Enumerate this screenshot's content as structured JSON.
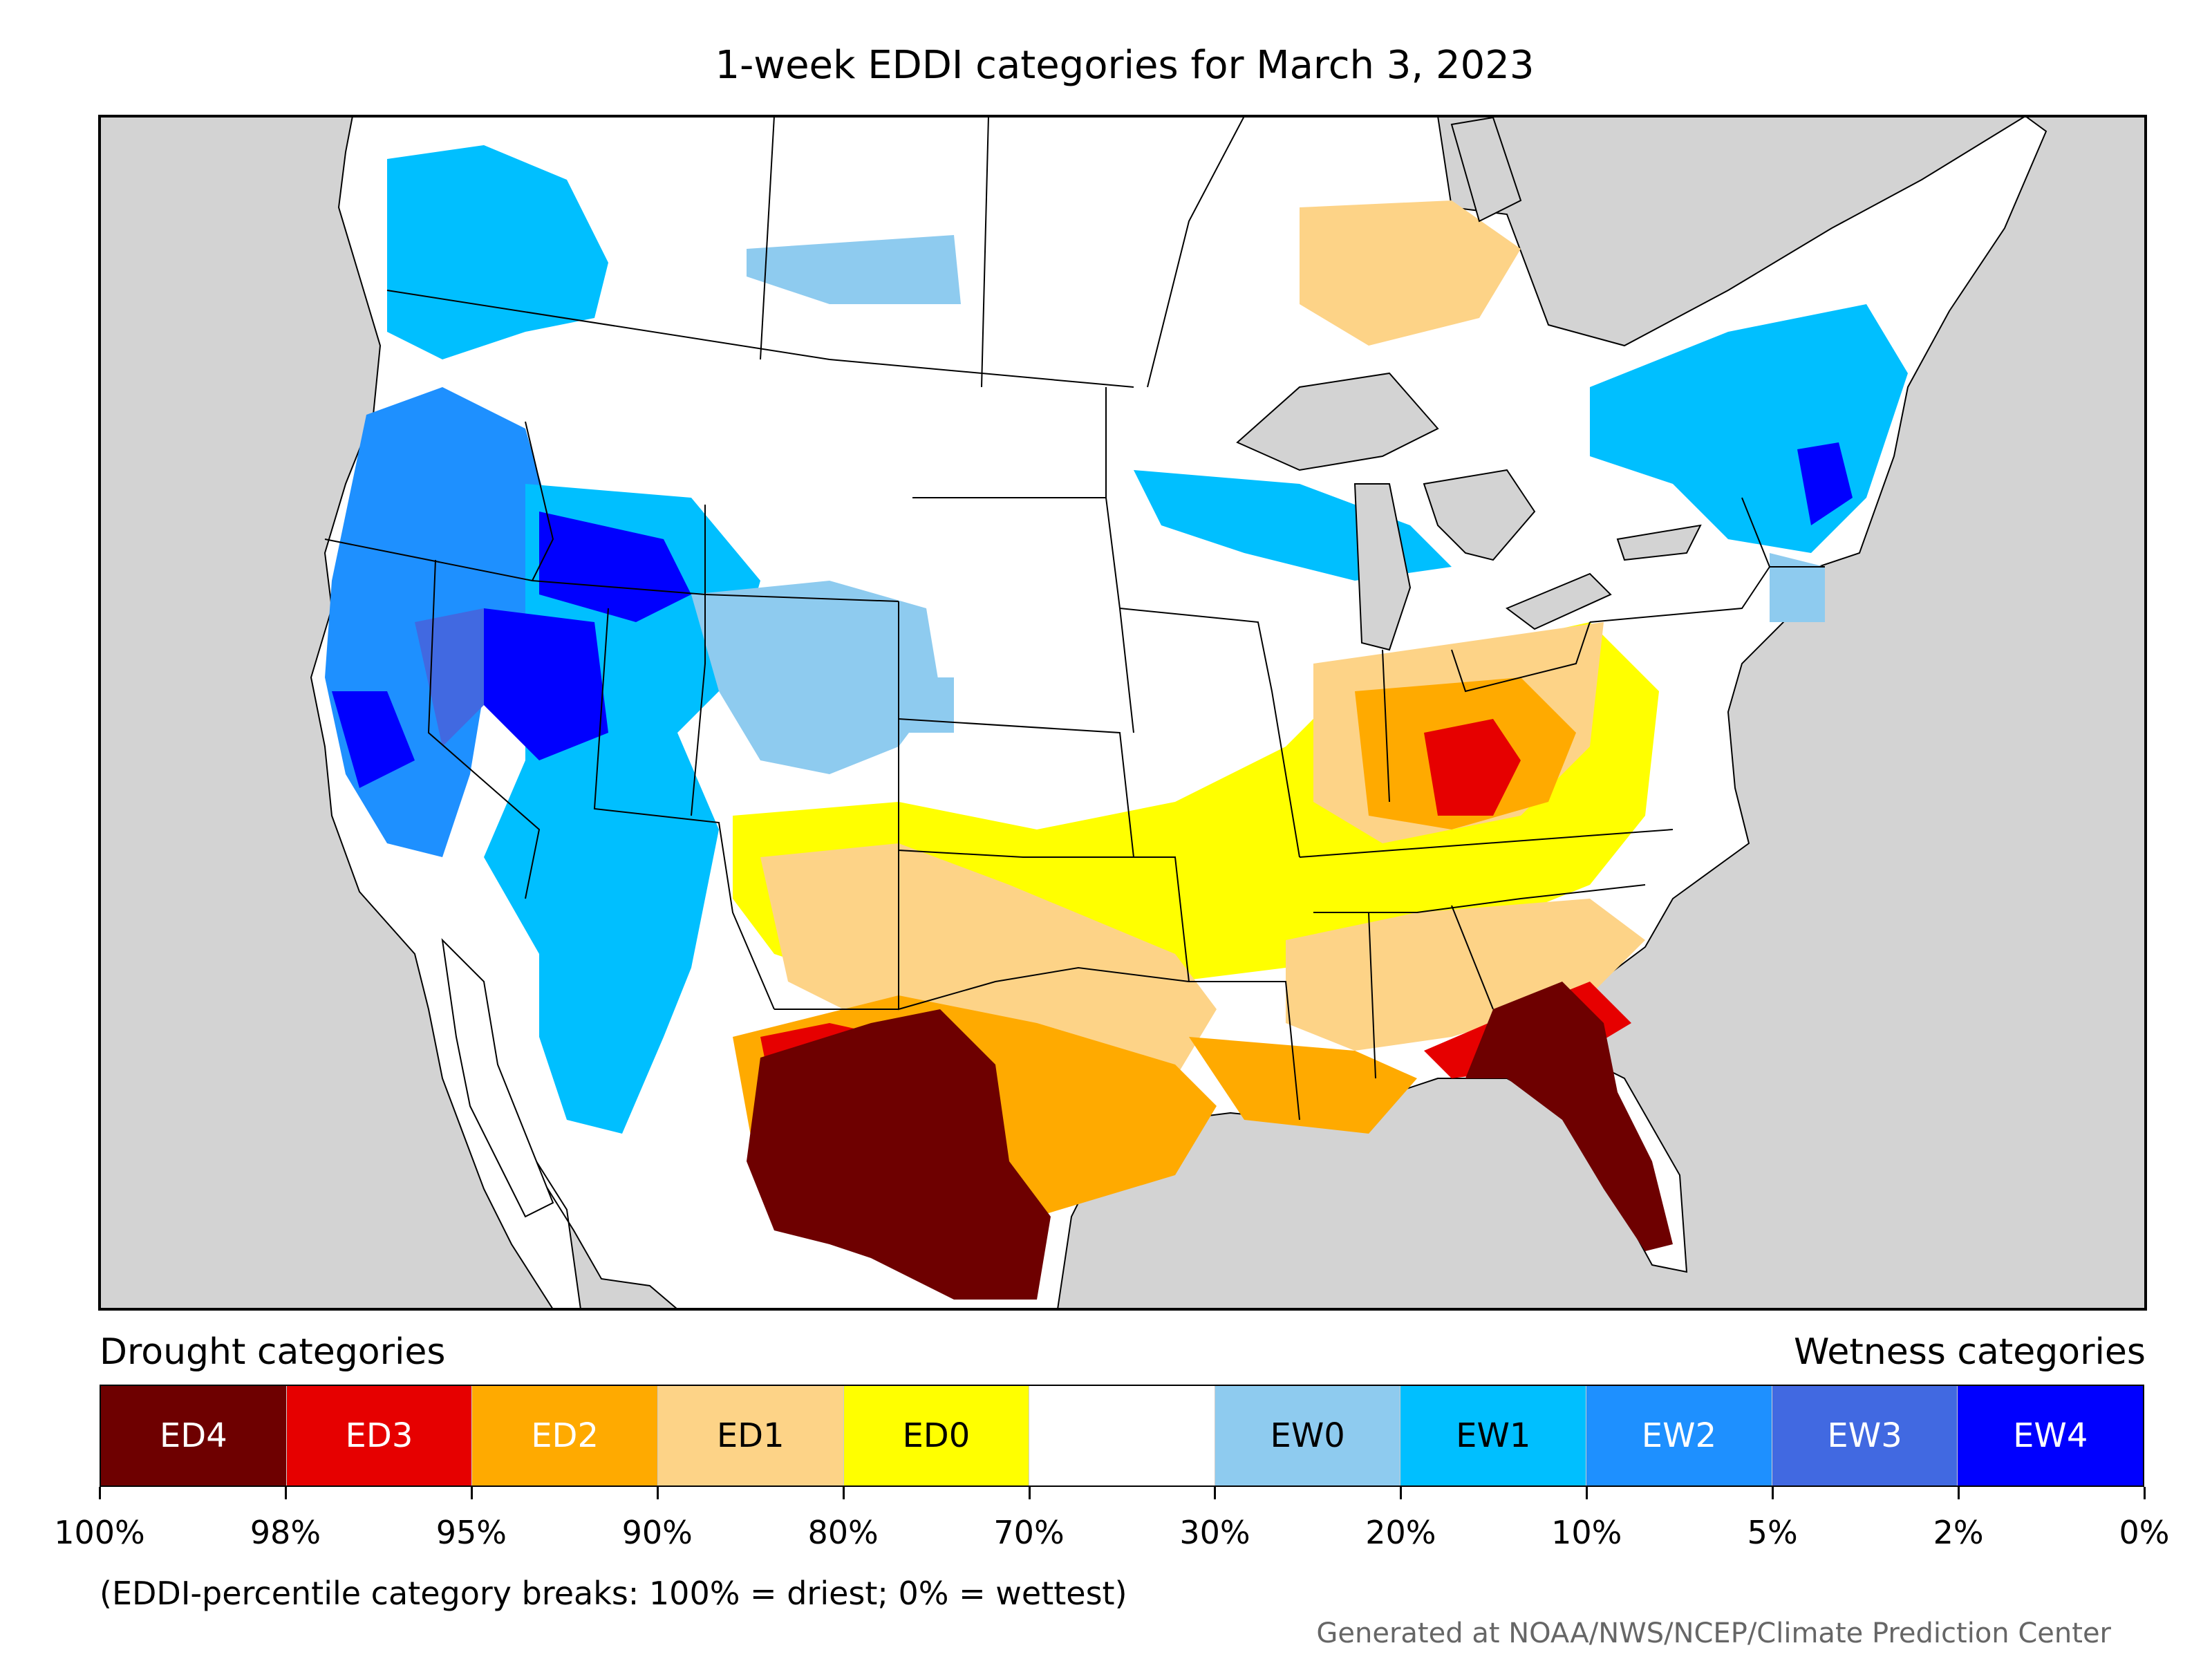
{
  "map": {
    "title": "1-week EDDI categories for March 3, 2023",
    "region": "Contiguous United States with portions of Canada and Mexico",
    "colors": {
      "ocean": "#d3d3d3",
      "land": "#ffffff",
      "border": "#000000"
    },
    "regions_shown": [
      {
        "category": "EW2",
        "area": "Pacific Northwest and northern California"
      },
      {
        "category": "EW4",
        "area": "Nevada, Utah, southern Idaho"
      },
      {
        "category": "EW1",
        "area": "Great Lakes, New England and Quebec"
      },
      {
        "category": "ED4",
        "area": "South and West Texas, northern Mexico"
      },
      {
        "category": "ED4",
        "area": "Florida and southern Georgia"
      },
      {
        "category": "ED3",
        "area": "Kentucky, southern Ohio"
      },
      {
        "category": "ED2",
        "area": "Ohio Valley, Louisiana and Gulf Coast"
      },
      {
        "category": "ED1",
        "area": "Oklahoma, Texas, northern Ontario"
      },
      {
        "category": "ED0",
        "area": "Missouri, Arkansas, Midwest, southern Ontario"
      }
    ]
  },
  "legend": {
    "drought_heading": "Drought categories",
    "wetness_heading": "Wetness categories",
    "categories": [
      {
        "label": "ED4",
        "color": "#6e0000",
        "text_color": "#ffffff"
      },
      {
        "label": "ED3",
        "color": "#e60000",
        "text_color": "#ffffff"
      },
      {
        "label": "ED2",
        "color": "#ffaa00",
        "text_color": "#ffffff"
      },
      {
        "label": "ED1",
        "color": "#fdd387",
        "text_color": "#000000"
      },
      {
        "label": "ED0",
        "color": "#ffff00",
        "text_color": "#000000"
      },
      {
        "label": "",
        "color": "#ffffff",
        "text_color": "#000000"
      },
      {
        "label": "EW0",
        "color": "#8ecbef",
        "text_color": "#000000"
      },
      {
        "label": "EW1",
        "color": "#00bfff",
        "text_color": "#000000"
      },
      {
        "label": "EW2",
        "color": "#1e90ff",
        "text_color": "#ffffff"
      },
      {
        "label": "EW3",
        "color": "#4169e1",
        "text_color": "#ffffff"
      },
      {
        "label": "EW4",
        "color": "#0000ff",
        "text_color": "#ffffff"
      }
    ],
    "ticks": [
      "100%",
      "98%",
      "95%",
      "90%",
      "80%",
      "70%",
      "30%",
      "20%",
      "10%",
      "5%",
      "2%",
      "0%"
    ],
    "note": "(EDDI-percentile category breaks: 100% = driest; 0% = wettest)"
  },
  "credit": "Generated at NOAA/NWS/NCEP/Climate Prediction Center"
}
